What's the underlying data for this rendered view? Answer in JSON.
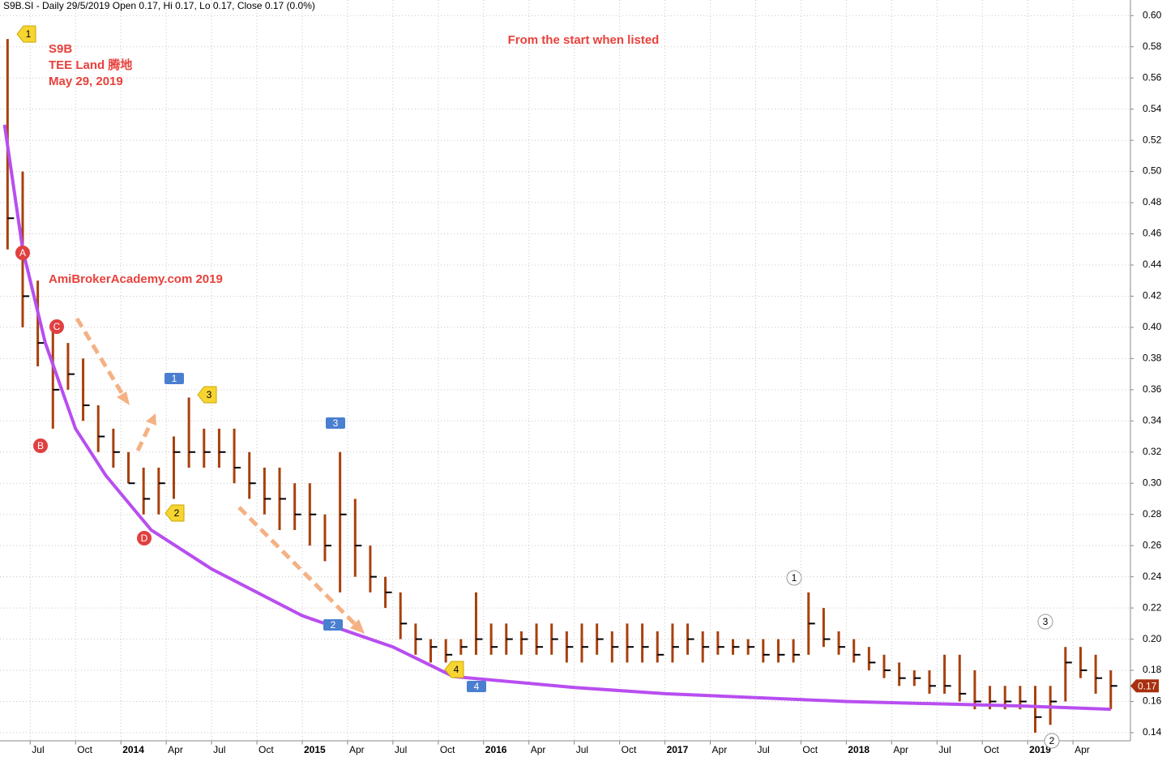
{
  "chart_data": {
    "type": "ohlc",
    "title": "S9B.SI - Daily 29/5/2019 Open 0.17, Hi 0.17, Lo 0.17, Close 0.17 (0.0%)",
    "symbol": "S9B",
    "company": "TEE Land  腾地",
    "date": "May 29, 2019",
    "note": "From the start when listed",
    "watermark": "AmiBrokerAcademy.com   2019",
    "color": "#a8400e",
    "grid": true,
    "x": [
      4.5,
      5.5,
      6.5,
      7.5,
      8.5,
      9.5,
      10.5,
      11.5,
      12.5,
      13.5,
      14.5,
      15.5,
      16.5,
      17.5,
      18.5,
      19.5,
      20.5,
      21.5,
      22.5,
      23.5,
      24.5,
      25.5,
      26.5,
      27.5,
      28.5,
      29.5,
      30.5,
      31.5,
      32.5,
      33.5,
      34.5,
      35.5,
      36.5,
      37.5,
      38.5,
      39.5,
      40.5,
      41.5,
      42.5,
      43.5,
      44.5,
      45.5,
      46.5,
      47.5,
      48.5,
      49.5,
      50.5,
      51.5,
      52.5,
      53.5,
      54.5,
      55.5,
      56.5,
      57.5,
      58.5,
      59.5,
      60.5,
      61.5,
      62.5,
      63.5,
      64.5,
      65.5,
      66.5,
      67.5,
      68.5,
      69.5,
      70.5,
      71.5,
      72.5,
      73.5,
      74.5,
      75.5,
      76.5,
      77.5
    ],
    "high": [
      0.585,
      0.5,
      0.43,
      0.4,
      0.39,
      0.38,
      0.35,
      0.335,
      0.32,
      0.31,
      0.31,
      0.33,
      0.355,
      0.335,
      0.335,
      0.335,
      0.32,
      0.31,
      0.31,
      0.3,
      0.3,
      0.28,
      0.32,
      0.29,
      0.26,
      0.24,
      0.23,
      0.21,
      0.2,
      0.2,
      0.2,
      0.23,
      0.21,
      0.21,
      0.205,
      0.21,
      0.21,
      0.205,
      0.21,
      0.21,
      0.205,
      0.21,
      0.21,
      0.205,
      0.21,
      0.21,
      0.205,
      0.205,
      0.2,
      0.2,
      0.2,
      0.2,
      0.2,
      0.23,
      0.22,
      0.205,
      0.2,
      0.195,
      0.19,
      0.185,
      0.18,
      0.18,
      0.19,
      0.19,
      0.18,
      0.17,
      0.17,
      0.17,
      0.17,
      0.17,
      0.195,
      0.195,
      0.19,
      0.18
    ],
    "low": [
      0.45,
      0.4,
      0.375,
      0.335,
      0.36,
      0.34,
      0.32,
      0.31,
      0.3,
      0.28,
      0.28,
      0.29,
      0.31,
      0.31,
      0.31,
      0.3,
      0.29,
      0.28,
      0.27,
      0.27,
      0.26,
      0.25,
      0.23,
      0.24,
      0.23,
      0.22,
      0.2,
      0.19,
      0.185,
      0.185,
      0.19,
      0.19,
      0.19,
      0.19,
      0.19,
      0.19,
      0.19,
      0.185,
      0.185,
      0.19,
      0.185,
      0.185,
      0.185,
      0.185,
      0.185,
      0.19,
      0.185,
      0.19,
      0.19,
      0.19,
      0.185,
      0.185,
      0.185,
      0.19,
      0.195,
      0.19,
      0.185,
      0.18,
      0.175,
      0.17,
      0.17,
      0.165,
      0.165,
      0.16,
      0.155,
      0.155,
      0.155,
      0.155,
      0.14,
      0.145,
      0.16,
      0.175,
      0.165,
      0.155
    ],
    "close": [
      0.47,
      0.42,
      0.39,
      0.36,
      0.37,
      0.35,
      0.33,
      0.32,
      0.3,
      0.29,
      0.3,
      0.32,
      0.32,
      0.32,
      0.32,
      0.31,
      0.3,
      0.29,
      0.29,
      0.28,
      0.28,
      0.26,
      0.28,
      0.26,
      0.24,
      0.23,
      0.21,
      0.2,
      0.195,
      0.19,
      0.195,
      0.2,
      0.195,
      0.2,
      0.2,
      0.195,
      0.2,
      0.195,
      0.195,
      0.2,
      0.195,
      0.195,
      0.195,
      0.19,
      0.195,
      0.2,
      0.195,
      0.195,
      0.195,
      0.195,
      0.19,
      0.19,
      0.19,
      0.21,
      0.2,
      0.195,
      0.19,
      0.185,
      0.18,
      0.175,
      0.175,
      0.17,
      0.17,
      0.165,
      0.16,
      0.16,
      0.16,
      0.16,
      0.15,
      0.16,
      0.185,
      0.18,
      0.175,
      0.17
    ],
    "last_price": 0.17,
    "trend_curve": {
      "color": "#b84ef0",
      "x": [
        4.3,
        5.5,
        7,
        9,
        11,
        14,
        18,
        24,
        30,
        34,
        42,
        48,
        60,
        72,
        77.5
      ],
      "values": [
        0.53,
        0.45,
        0.39,
        0.335,
        0.305,
        0.27,
        0.245,
        0.215,
        0.195,
        0.176,
        0.169,
        0.165,
        0.16,
        0.157,
        0.155
      ]
    },
    "markers": [
      {
        "label": "1",
        "kind": "tag"
      },
      {
        "label": "2",
        "kind": "tag"
      },
      {
        "label": "3",
        "kind": "tag"
      },
      {
        "label": "4",
        "kind": "tag"
      },
      {
        "label": "A",
        "kind": "red"
      },
      {
        "label": "B",
        "kind": "red"
      },
      {
        "label": "C",
        "kind": "red"
      },
      {
        "label": "D",
        "kind": "red"
      },
      {
        "label": "1",
        "kind": "box"
      },
      {
        "label": "2",
        "kind": "box"
      },
      {
        "label": "3",
        "kind": "box"
      },
      {
        "label": "4",
        "kind": "box"
      },
      {
        "label": "1",
        "kind": "white"
      },
      {
        "label": "2",
        "kind": "white"
      },
      {
        "label": "3",
        "kind": "white"
      }
    ],
    "xlim": [
      4.0,
      78.8
    ],
    "xticks": [
      {
        "value": 6,
        "label": "Jul"
      },
      {
        "value": 9,
        "label": "Oct"
      },
      {
        "value": 12,
        "label": "2014"
      },
      {
        "value": 15,
        "label": "Apr"
      },
      {
        "value": 18,
        "label": "Jul"
      },
      {
        "value": 21,
        "label": "Oct"
      },
      {
        "value": 24,
        "label": "2015"
      },
      {
        "value": 27,
        "label": "Apr"
      },
      {
        "value": 30,
        "label": "Jul"
      },
      {
        "value": 33,
        "label": "Oct"
      },
      {
        "value": 36,
        "label": "2016"
      },
      {
        "value": 39,
        "label": "Apr"
      },
      {
        "value": 42,
        "label": "Jul"
      },
      {
        "value": 45,
        "label": "Oct"
      },
      {
        "value": 48,
        "label": "2017"
      },
      {
        "value": 51,
        "label": "Apr"
      },
      {
        "value": 54,
        "label": "Jul"
      },
      {
        "value": 57,
        "label": "Oct"
      },
      {
        "value": 60,
        "label": "2018"
      },
      {
        "value": 63,
        "label": "Apr"
      },
      {
        "value": 66,
        "label": "Jul"
      },
      {
        "value": 69,
        "label": "Oct"
      },
      {
        "value": 72,
        "label": "2019"
      },
      {
        "value": 75,
        "label": "Apr"
      }
    ],
    "ylim": [
      0.135,
      0.61
    ],
    "yticks": [
      {
        "value": 0.14,
        "label": "0.14"
      },
      {
        "value": 0.16,
        "label": "0.16"
      },
      {
        "value": 0.18,
        "label": "0.18"
      },
      {
        "value": 0.2,
        "label": "0.20"
      },
      {
        "value": 0.22,
        "label": "0.22"
      },
      {
        "value": 0.24,
        "label": "0.24"
      },
      {
        "value": 0.26,
        "label": "0.26"
      },
      {
        "value": 0.28,
        "label": "0.28"
      },
      {
        "value": 0.3,
        "label": "0.30"
      },
      {
        "value": 0.32,
        "label": "0.32"
      },
      {
        "value": 0.34,
        "label": "0.34"
      },
      {
        "value": 0.36,
        "label": "0.36"
      },
      {
        "value": 0.38,
        "label": "0.38"
      },
      {
        "value": 0.4,
        "label": "0.40"
      },
      {
        "value": 0.42,
        "label": "0.42"
      },
      {
        "value": 0.44,
        "label": "0.44"
      },
      {
        "value": 0.46,
        "label": "0.46"
      },
      {
        "value": 0.48,
        "label": "0.48"
      },
      {
        "value": 0.5,
        "label": "0.50"
      },
      {
        "value": 0.52,
        "label": "0.52"
      },
      {
        "value": 0.54,
        "label": "0.54"
      },
      {
        "value": 0.56,
        "label": "0.56"
      },
      {
        "value": 0.58,
        "label": "0.58"
      },
      {
        "value": 0.6,
        "label": "0.60"
      }
    ]
  }
}
